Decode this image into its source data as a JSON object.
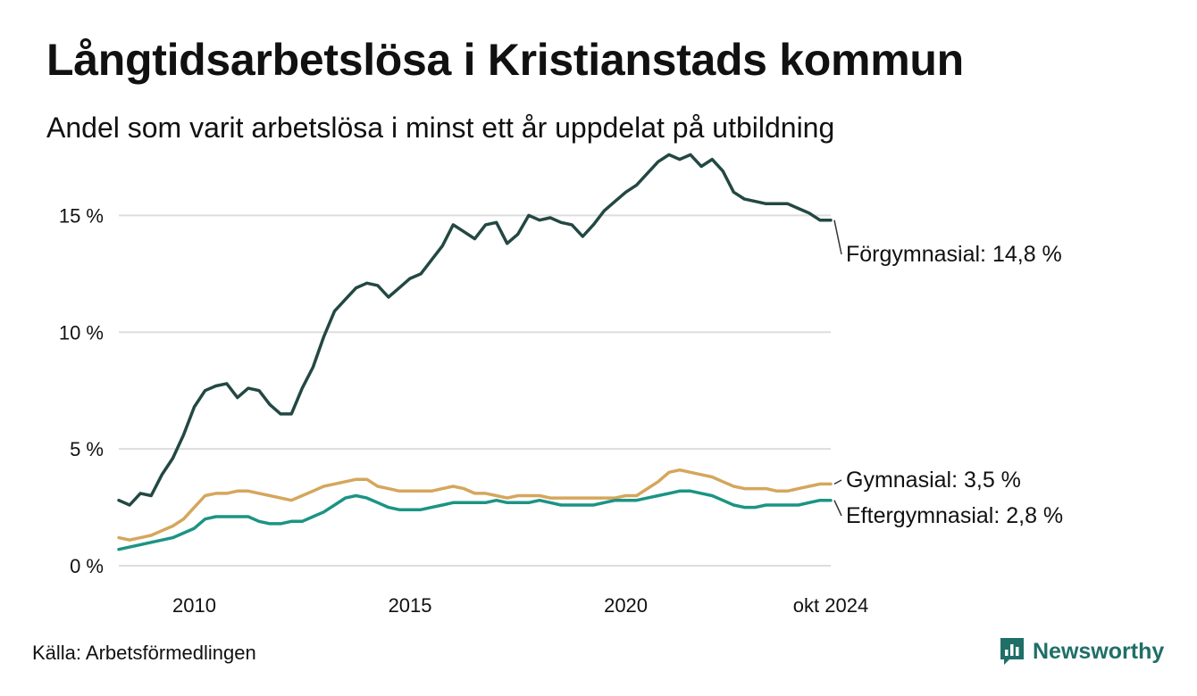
{
  "title": "Långtidsarbetslösa i Kristianstads kommun",
  "subtitle": "Andel som varit arbetslösa i minst ett år uppdelat på utbildning",
  "source": "Källa: Arbetsförmedlingen",
  "brand": "Newsworthy",
  "colors": {
    "forgymnasial": "#234843",
    "gymnasial": "#d5a65c",
    "eftergymnasial": "#1b9484",
    "grid": "#dddddd",
    "brand": "#1f6f67"
  },
  "chart_data": {
    "type": "line",
    "x_unit": "year",
    "xlim": [
      2008.25,
      2024.75
    ],
    "ylim": [
      0,
      17.5
    ],
    "y_ticks": [
      {
        "value": 0,
        "label": "0 %"
      },
      {
        "value": 5,
        "label": "5 %"
      },
      {
        "value": 10,
        "label": "10 %"
      },
      {
        "value": 15,
        "label": "15 %"
      }
    ],
    "x_ticks": [
      {
        "value": 2010,
        "label": "2010"
      },
      {
        "value": 2015,
        "label": "2015"
      },
      {
        "value": 2020,
        "label": "2020"
      },
      {
        "value": 2024.75,
        "label": "okt 2024"
      }
    ],
    "grid": "horizontal",
    "series": [
      {
        "key": "forgymnasial",
        "name": "Förgymnasial",
        "end_label": "Förgymnasial: 14,8 %",
        "color": "#234843",
        "points": [
          [
            2008.25,
            2.8
          ],
          [
            2008.5,
            2.6
          ],
          [
            2008.75,
            3.1
          ],
          [
            2009.0,
            3.0
          ],
          [
            2009.25,
            3.9
          ],
          [
            2009.5,
            4.6
          ],
          [
            2009.75,
            5.6
          ],
          [
            2010.0,
            6.8
          ],
          [
            2010.25,
            7.5
          ],
          [
            2010.5,
            7.7
          ],
          [
            2010.75,
            7.8
          ],
          [
            2011.0,
            7.2
          ],
          [
            2011.25,
            7.6
          ],
          [
            2011.5,
            7.5
          ],
          [
            2011.75,
            6.9
          ],
          [
            2012.0,
            6.5
          ],
          [
            2012.25,
            6.5
          ],
          [
            2012.5,
            7.6
          ],
          [
            2012.75,
            8.5
          ],
          [
            2013.0,
            9.8
          ],
          [
            2013.25,
            10.9
          ],
          [
            2013.5,
            11.4
          ],
          [
            2013.75,
            11.9
          ],
          [
            2014.0,
            12.1
          ],
          [
            2014.25,
            12.0
          ],
          [
            2014.5,
            11.5
          ],
          [
            2014.75,
            11.9
          ],
          [
            2015.0,
            12.3
          ],
          [
            2015.25,
            12.5
          ],
          [
            2015.5,
            13.1
          ],
          [
            2015.75,
            13.7
          ],
          [
            2016.0,
            14.6
          ],
          [
            2016.25,
            14.3
          ],
          [
            2016.5,
            14.0
          ],
          [
            2016.75,
            14.6
          ],
          [
            2017.0,
            14.7
          ],
          [
            2017.25,
            13.8
          ],
          [
            2017.5,
            14.2
          ],
          [
            2017.75,
            15.0
          ],
          [
            2018.0,
            14.8
          ],
          [
            2018.25,
            14.9
          ],
          [
            2018.5,
            14.7
          ],
          [
            2018.75,
            14.6
          ],
          [
            2019.0,
            14.1
          ],
          [
            2019.25,
            14.6
          ],
          [
            2019.5,
            15.2
          ],
          [
            2019.75,
            15.6
          ],
          [
            2020.0,
            16.0
          ],
          [
            2020.25,
            16.3
          ],
          [
            2020.5,
            16.8
          ],
          [
            2020.75,
            17.3
          ],
          [
            2021.0,
            17.6
          ],
          [
            2021.25,
            17.4
          ],
          [
            2021.5,
            17.6
          ],
          [
            2021.75,
            17.1
          ],
          [
            2022.0,
            17.4
          ],
          [
            2022.25,
            16.9
          ],
          [
            2022.5,
            16.0
          ],
          [
            2022.75,
            15.7
          ],
          [
            2023.0,
            15.6
          ],
          [
            2023.25,
            15.5
          ],
          [
            2023.5,
            15.5
          ],
          [
            2023.75,
            15.5
          ],
          [
            2024.0,
            15.3
          ],
          [
            2024.25,
            15.1
          ],
          [
            2024.5,
            14.8
          ],
          [
            2024.75,
            14.8
          ]
        ]
      },
      {
        "key": "gymnasial",
        "name": "Gymnasial",
        "end_label": "Gymnasial:  3,5 %",
        "color": "#d5a65c",
        "points": [
          [
            2008.25,
            1.2
          ],
          [
            2008.5,
            1.1
          ],
          [
            2008.75,
            1.2
          ],
          [
            2009.0,
            1.3
          ],
          [
            2009.25,
            1.5
          ],
          [
            2009.5,
            1.7
          ],
          [
            2009.75,
            2.0
          ],
          [
            2010.0,
            2.5
          ],
          [
            2010.25,
            3.0
          ],
          [
            2010.5,
            3.1
          ],
          [
            2010.75,
            3.1
          ],
          [
            2011.0,
            3.2
          ],
          [
            2011.25,
            3.2
          ],
          [
            2011.5,
            3.1
          ],
          [
            2011.75,
            3.0
          ],
          [
            2012.0,
            2.9
          ],
          [
            2012.25,
            2.8
          ],
          [
            2012.5,
            3.0
          ],
          [
            2012.75,
            3.2
          ],
          [
            2013.0,
            3.4
          ],
          [
            2013.25,
            3.5
          ],
          [
            2013.5,
            3.6
          ],
          [
            2013.75,
            3.7
          ],
          [
            2014.0,
            3.7
          ],
          [
            2014.25,
            3.4
          ],
          [
            2014.5,
            3.3
          ],
          [
            2014.75,
            3.2
          ],
          [
            2015.0,
            3.2
          ],
          [
            2015.25,
            3.2
          ],
          [
            2015.5,
            3.2
          ],
          [
            2015.75,
            3.3
          ],
          [
            2016.0,
            3.4
          ],
          [
            2016.25,
            3.3
          ],
          [
            2016.5,
            3.1
          ],
          [
            2016.75,
            3.1
          ],
          [
            2017.0,
            3.0
          ],
          [
            2017.25,
            2.9
          ],
          [
            2017.5,
            3.0
          ],
          [
            2017.75,
            3.0
          ],
          [
            2018.0,
            3.0
          ],
          [
            2018.25,
            2.9
          ],
          [
            2018.5,
            2.9
          ],
          [
            2018.75,
            2.9
          ],
          [
            2019.0,
            2.9
          ],
          [
            2019.25,
            2.9
          ],
          [
            2019.5,
            2.9
          ],
          [
            2019.75,
            2.9
          ],
          [
            2020.0,
            3.0
          ],
          [
            2020.25,
            3.0
          ],
          [
            2020.5,
            3.3
          ],
          [
            2020.75,
            3.6
          ],
          [
            2021.0,
            4.0
          ],
          [
            2021.25,
            4.1
          ],
          [
            2021.5,
            4.0
          ],
          [
            2021.75,
            3.9
          ],
          [
            2022.0,
            3.8
          ],
          [
            2022.25,
            3.6
          ],
          [
            2022.5,
            3.4
          ],
          [
            2022.75,
            3.3
          ],
          [
            2023.0,
            3.3
          ],
          [
            2023.25,
            3.3
          ],
          [
            2023.5,
            3.2
          ],
          [
            2023.75,
            3.2
          ],
          [
            2024.0,
            3.3
          ],
          [
            2024.25,
            3.4
          ],
          [
            2024.5,
            3.5
          ],
          [
            2024.75,
            3.5
          ]
        ]
      },
      {
        "key": "eftergymnasial",
        "name": "Eftergymnasial",
        "end_label": "Eftergymnasial:  2,8 %",
        "color": "#1b9484",
        "points": [
          [
            2008.25,
            0.7
          ],
          [
            2008.5,
            0.8
          ],
          [
            2008.75,
            0.9
          ],
          [
            2009.0,
            1.0
          ],
          [
            2009.25,
            1.1
          ],
          [
            2009.5,
            1.2
          ],
          [
            2009.75,
            1.4
          ],
          [
            2010.0,
            1.6
          ],
          [
            2010.25,
            2.0
          ],
          [
            2010.5,
            2.1
          ],
          [
            2010.75,
            2.1
          ],
          [
            2011.0,
            2.1
          ],
          [
            2011.25,
            2.1
          ],
          [
            2011.5,
            1.9
          ],
          [
            2011.75,
            1.8
          ],
          [
            2012.0,
            1.8
          ],
          [
            2012.25,
            1.9
          ],
          [
            2012.5,
            1.9
          ],
          [
            2012.75,
            2.1
          ],
          [
            2013.0,
            2.3
          ],
          [
            2013.25,
            2.6
          ],
          [
            2013.5,
            2.9
          ],
          [
            2013.75,
            3.0
          ],
          [
            2014.0,
            2.9
          ],
          [
            2014.25,
            2.7
          ],
          [
            2014.5,
            2.5
          ],
          [
            2014.75,
            2.4
          ],
          [
            2015.0,
            2.4
          ],
          [
            2015.25,
            2.4
          ],
          [
            2015.5,
            2.5
          ],
          [
            2015.75,
            2.6
          ],
          [
            2016.0,
            2.7
          ],
          [
            2016.25,
            2.7
          ],
          [
            2016.5,
            2.7
          ],
          [
            2016.75,
            2.7
          ],
          [
            2017.0,
            2.8
          ],
          [
            2017.25,
            2.7
          ],
          [
            2017.5,
            2.7
          ],
          [
            2017.75,
            2.7
          ],
          [
            2018.0,
            2.8
          ],
          [
            2018.25,
            2.7
          ],
          [
            2018.5,
            2.6
          ],
          [
            2018.75,
            2.6
          ],
          [
            2019.0,
            2.6
          ],
          [
            2019.25,
            2.6
          ],
          [
            2019.5,
            2.7
          ],
          [
            2019.75,
            2.8
          ],
          [
            2020.0,
            2.8
          ],
          [
            2020.25,
            2.8
          ],
          [
            2020.5,
            2.9
          ],
          [
            2020.75,
            3.0
          ],
          [
            2021.0,
            3.1
          ],
          [
            2021.25,
            3.2
          ],
          [
            2021.5,
            3.2
          ],
          [
            2021.75,
            3.1
          ],
          [
            2022.0,
            3.0
          ],
          [
            2022.25,
            2.8
          ],
          [
            2022.5,
            2.6
          ],
          [
            2022.75,
            2.5
          ],
          [
            2023.0,
            2.5
          ],
          [
            2023.25,
            2.6
          ],
          [
            2023.5,
            2.6
          ],
          [
            2023.75,
            2.6
          ],
          [
            2024.0,
            2.6
          ],
          [
            2024.25,
            2.7
          ],
          [
            2024.5,
            2.8
          ],
          [
            2024.75,
            2.8
          ]
        ]
      }
    ]
  }
}
